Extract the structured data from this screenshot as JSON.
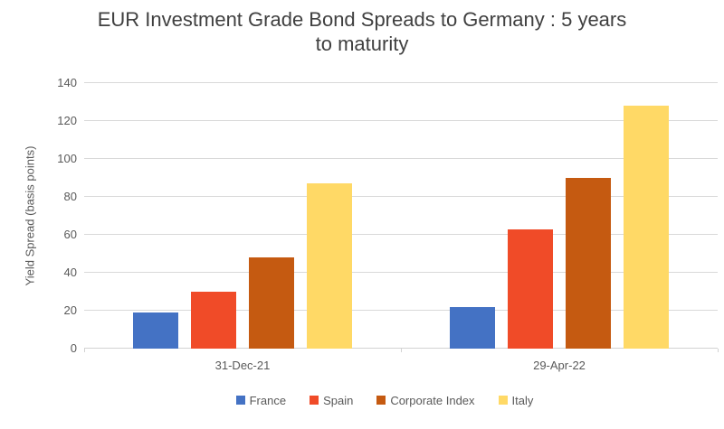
{
  "chart_data": {
    "type": "bar",
    "title": "EUR Investment Grade Bond Spreads to Germany : 5 years to maturity",
    "title_line1": "EUR Investment Grade Bond Spreads to Germany : 5 years",
    "title_line2": "to maturity",
    "xlabel": "",
    "ylabel": "Yield Spread (basis points)",
    "ylim": [
      0,
      140
    ],
    "yticks": [
      0,
      20,
      40,
      60,
      80,
      100,
      120,
      140
    ],
    "grid": "horizontal",
    "legend_position": "bottom",
    "categories": [
      "31-Dec-21",
      "29-Apr-22"
    ],
    "series": [
      {
        "name": "France",
        "color": "#4472C4",
        "values": [
          19,
          22
        ]
      },
      {
        "name": "Spain",
        "color": "#F04B28",
        "values": [
          30,
          63
        ]
      },
      {
        "name": "Corporate Index",
        "color": "#C55A11",
        "values": [
          48,
          90
        ]
      },
      {
        "name": "Italy",
        "color": "#FFD966",
        "values": [
          87,
          128
        ]
      }
    ]
  },
  "colors": {
    "background": "#FFFFFF",
    "gridline": "#D9D9D9",
    "axis_line": "#D2D2D2",
    "tick_label": "#595959",
    "title_text": "#404040"
  }
}
